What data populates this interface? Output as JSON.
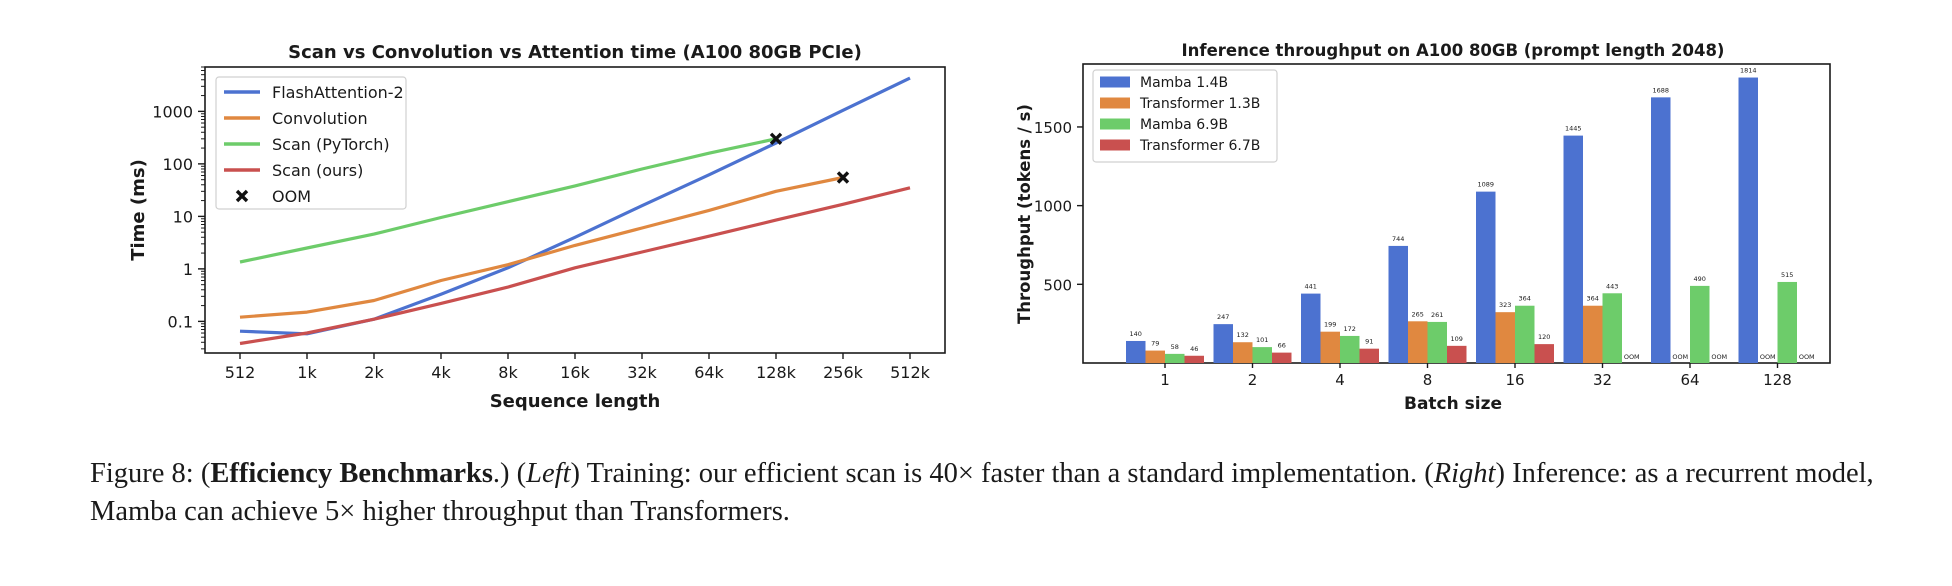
{
  "chart_data": [
    {
      "type": "line",
      "title": "Scan vs Convolution vs Attention time (A100 80GB PCIe)",
      "xlabel": "Sequence length",
      "ylabel": "Time (ms)",
      "categories": [
        "512",
        "1k",
        "2k",
        "4k",
        "8k",
        "16k",
        "32k",
        "64k",
        "128k",
        "256k",
        "512k"
      ],
      "yscale": "log",
      "ylim": [
        0.025,
        7000
      ],
      "yticks": [
        0.1,
        1,
        10,
        100,
        1000
      ],
      "ytick_labels": [
        "0.1",
        "1",
        "10",
        "100",
        "1000"
      ],
      "grid": false,
      "legend_position": "top-left",
      "series": [
        {
          "name": "FlashAttention-2",
          "color": "#4c72d0",
          "values": [
            0.065,
            0.058,
            0.11,
            0.33,
            1.05,
            4.0,
            16,
            62,
            250,
            1050,
            4300
          ]
        },
        {
          "name": "Convolution",
          "color": "#e08840",
          "values": [
            0.12,
            0.15,
            0.25,
            0.6,
            1.2,
            2.8,
            6.0,
            13,
            30,
            55,
            null
          ]
        },
        {
          "name": "Scan (PyTorch)",
          "color": "#6dcc6a",
          "values": [
            1.35,
            2.5,
            4.6,
            9.5,
            19,
            38,
            80,
            160,
            300,
            null,
            null
          ]
        },
        {
          "name": "Scan (ours)",
          "color": "#c9504f",
          "values": [
            0.038,
            0.06,
            0.11,
            0.22,
            0.45,
            1.05,
            2.1,
            4.2,
            8.5,
            17,
            35
          ]
        }
      ],
      "oom_markers": [
        {
          "series": "Scan (PyTorch)",
          "x": "128k",
          "y": 300
        },
        {
          "series": "Convolution",
          "x": "256k",
          "y": 55
        }
      ],
      "oom_legend_label": "OOM"
    },
    {
      "type": "bar",
      "title": "Inference throughput on A100 80GB (prompt length 2048)",
      "xlabel": "Batch size",
      "ylabel": "Throughput (tokens / s)",
      "categories": [
        "1",
        "2",
        "4",
        "8",
        "16",
        "32",
        "64",
        "128"
      ],
      "ylim": [
        0,
        1900
      ],
      "yticks": [
        500,
        1000,
        1500
      ],
      "grid": false,
      "legend_position": "top-left",
      "oom_label": "OOM",
      "series": [
        {
          "name": "Mamba 1.4B",
          "color": "#4c72d0",
          "values": [
            140,
            247,
            441,
            744,
            1089,
            1445,
            1688,
            1814
          ]
        },
        {
          "name": "Transformer 1.3B",
          "color": "#e08840",
          "values": [
            79,
            132,
            199,
            265,
            323,
            364,
            null,
            null
          ]
        },
        {
          "name": "Mamba 6.9B",
          "color": "#6dcc6a",
          "values": [
            58,
            101,
            172,
            261,
            364,
            443,
            490,
            515
          ]
        },
        {
          "name": "Transformer 6.7B",
          "color": "#c9504f",
          "values": [
            46,
            66,
            91,
            109,
            120,
            null,
            null,
            null
          ]
        }
      ]
    }
  ],
  "caption": {
    "prefix": "Figure 8: (",
    "bold": "Efficiency Benchmarks",
    "after_bold": ".) (",
    "italic_left": "Left",
    "text_left": ") Training: our efficient scan is 40× faster than a standard implementation. (",
    "italic_right": "Right",
    "text_right": ") Inference: as a recurrent model, Mamba can achieve 5× higher throughput than Transformers."
  }
}
